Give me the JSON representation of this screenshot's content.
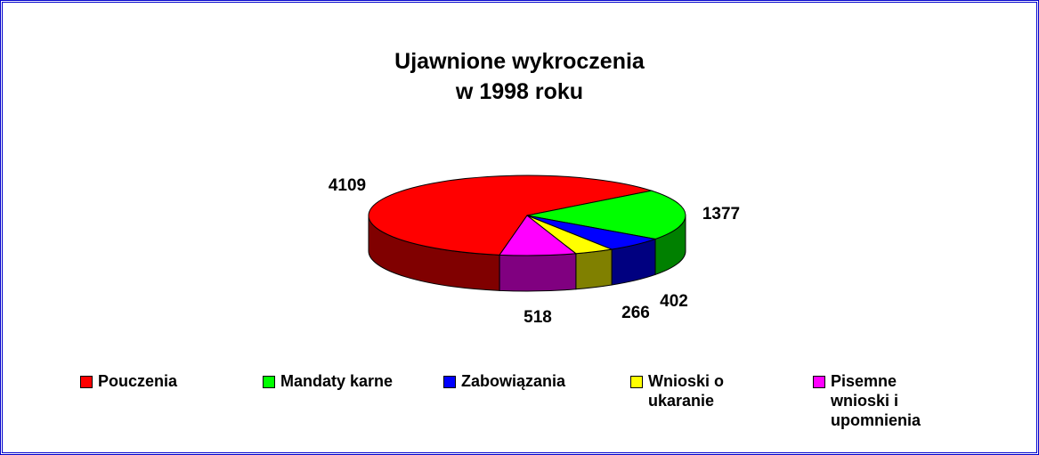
{
  "chart_data": {
    "type": "pie3d",
    "title": "Ujawnione wykroczenia\nw 1998 roku",
    "categories": [
      "Pouczenia",
      "Mandaty karne",
      "Zabowiązania",
      "Wnioski o ukaranie",
      "Pisemne wnioski i upomnienia"
    ],
    "values": [
      4109,
      1377,
      402,
      266,
      518
    ],
    "colors": [
      "#ff0000",
      "#00ff00",
      "#0000ff",
      "#ffff00",
      "#ff00ff"
    ],
    "side_colors": [
      "#800000",
      "#008000",
      "#000080",
      "#808000",
      "#800080"
    ],
    "legend": "bottom"
  }
}
